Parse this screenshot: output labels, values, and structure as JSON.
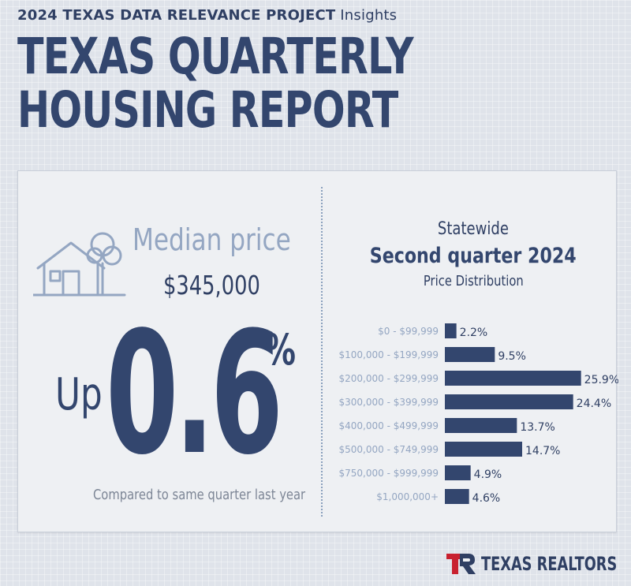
{
  "header": {
    "kicker_bold": "2024 TEXAS DATA RELEVANCE PROJECT",
    "kicker_light": "Insights",
    "title_line1": "TEXAS QUARTERLY",
    "title_line2": "HOUSING REPORT"
  },
  "left": {
    "median_label": "Median price",
    "median_value": "$345,000",
    "up_word": "Up",
    "change_value": "0.6",
    "change_unit": "%",
    "comparison_note": "Compared to same quarter last year"
  },
  "right": {
    "region": "Statewide",
    "period": "Second quarter 2024",
    "subtitle": "Price Distribution"
  },
  "chart_data": {
    "type": "bar",
    "orientation": "horizontal",
    "title": "Price Distribution",
    "categories": [
      "$0 - $99,999",
      "$100,000 - $199,999",
      "$200,000 - $299,999",
      "$300,000 - $399,999",
      "$400,000 - $499,999",
      "$500,000 - $749,999",
      "$750,000 - $999,999",
      "$1,000,000+"
    ],
    "values": [
      2.2,
      9.5,
      25.9,
      24.4,
      13.7,
      14.7,
      4.9,
      4.6
    ],
    "value_labels": [
      "2.2%",
      "9.5%",
      "25.9%",
      "24.4%",
      "13.7%",
      "14.7%",
      "4.9%",
      "4.6%"
    ],
    "unit": "%",
    "xlim": [
      0,
      30
    ],
    "grid": false,
    "bar_color": "#33466e"
  },
  "colors": {
    "navy": "#33466e",
    "light_blue": "#94a6c2",
    "brand_red": "#c8202f"
  },
  "logo": {
    "text": "TEXAS REALTORS"
  }
}
